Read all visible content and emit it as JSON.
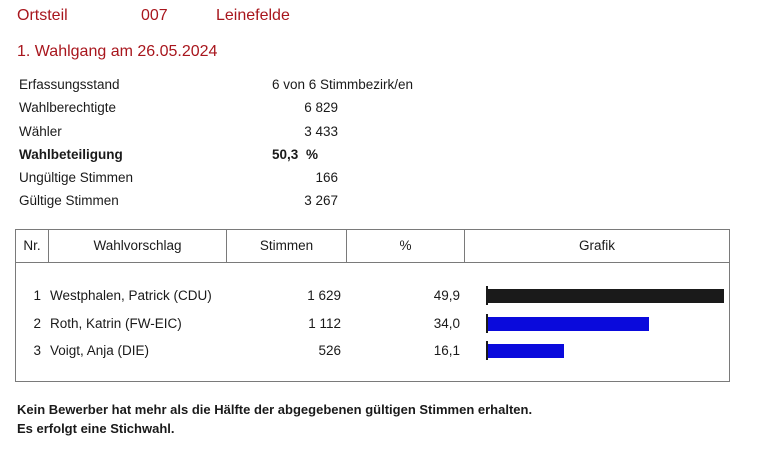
{
  "header": {
    "label": "Ortsteil",
    "number": "007",
    "name": "Leinefelde"
  },
  "subtitle": "1. Wahlgang am 26.05.2024",
  "stats": [
    {
      "label": "Erfassungsstand",
      "value": "6 von 6 Stimmbezirk/en",
      "unit": "",
      "bold": false,
      "wide": true
    },
    {
      "label": "Wahlberechtigte",
      "value": "6 829",
      "unit": "",
      "bold": false,
      "wide": false
    },
    {
      "label": "Wähler",
      "value": "3 433",
      "unit": "",
      "bold": false,
      "wide": false
    },
    {
      "label": "Wahlbeteiligung",
      "value": "50,3",
      "unit": "%",
      "bold": true,
      "wide": false
    },
    {
      "label": "Ungültige Stimmen",
      "value": "166",
      "unit": "",
      "bold": false,
      "wide": false
    },
    {
      "label": "Gültige Stimmen",
      "value": "3 267",
      "unit": "",
      "bold": false,
      "wide": false
    }
  ],
  "table": {
    "headers": {
      "nr": "Nr.",
      "candidate": "Wahlvorschlag",
      "votes": "Stimmen",
      "percent": "%",
      "chart": "Grafik"
    },
    "rows": [
      {
        "nr": "1",
        "name": "Westphalen, Patrick (CDU)",
        "votes": "1 629",
        "percent": "49,9",
        "share": 49.9,
        "color": "#1a1a1a"
      },
      {
        "nr": "2",
        "name": "Roth, Katrin (FW-EIC)",
        "votes": "1 112",
        "percent": "34,0",
        "share": 34.0,
        "color": "#0a0adc"
      },
      {
        "nr": "3",
        "name": "Voigt, Anja (DIE)",
        "votes": "526",
        "percent": "16,1",
        "share": 16.1,
        "color": "#0a0adc"
      }
    ]
  },
  "footer": {
    "line1": "Kein Bewerber hat mehr als die Hälfte der abgegebenen gültigen Stimmen erhalten.",
    "line2": "Es erfolgt eine Stichwahl."
  }
}
